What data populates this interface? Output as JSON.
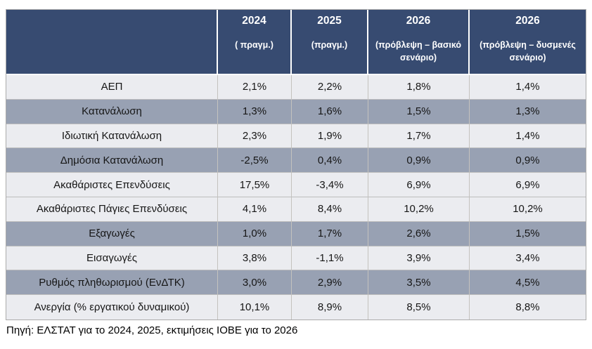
{
  "chart_data": {
    "type": "table",
    "title": "",
    "columns": [
      "",
      "2024 ( πραγμ.)",
      "2025 (πραγμ.)",
      "2026 (πρόβλεψη – βασικό σενάριο)",
      "2026 (πρόβλεψη – δυσμενές σενάριο)"
    ],
    "rows": [
      [
        "ΑΕΠ",
        "2,1%",
        "2,2%",
        "1,8%",
        "1,4%"
      ],
      [
        "Κατανάλωση",
        "1,3%",
        "1,6%",
        "1,5%",
        "1,3%"
      ],
      [
        "Ιδιωτική Κατανάλωση",
        "2,3%",
        "1,9%",
        "1,7%",
        "1,4%"
      ],
      [
        "Δημόσια Κατανάλωση",
        "-2,5%",
        "0,4%",
        "0,9%",
        "0,9%"
      ],
      [
        "Ακαθάριστες Επενδύσεις",
        "17,5%",
        "-3,4%",
        "6,9%",
        "6,9%"
      ],
      [
        "Ακαθάριστες Πάγιες Επενδύσεις",
        "4,1%",
        "8,4%",
        "10,2%",
        "10,2%"
      ],
      [
        "Εξαγωγές",
        "1,0%",
        "1,7%",
        "2,6%",
        "1,5%"
      ],
      [
        "Εισαγωγές",
        "3,8%",
        "-1,1%",
        "3,9%",
        "3,4%"
      ],
      [
        "Ρυθμός πληθωρισμού (ΕνΔΤΚ)",
        "3,0%",
        "2,9%",
        "3,5%",
        "4,5%"
      ],
      [
        "Ανεργία (% εργατικού δυναμικού)",
        "10,1%",
        "8,9%",
        "8,5%",
        "8,8%"
      ]
    ],
    "source": "Πηγή: ΕΛΣΤΑΤ για το 2024, 2025, εκτιμήσεις ΙΟΒΕ για το 2026"
  },
  "table": {
    "header": {
      "cols": [
        {
          "year": "2024",
          "note": "( πραγμ.)"
        },
        {
          "year": "2025",
          "note": "(πραγμ.)"
        },
        {
          "year": "2026",
          "note": "(πρόβλεψη – βασικό σενάριο)"
        },
        {
          "year": "2026",
          "note": "(πρόβλεψη – δυσμενές σενάριο)"
        }
      ]
    }
  },
  "footer": {
    "source": "Πηγή: ΕΛΣΤΑΤ για το 2024, 2025, εκτιμήσεις ΙΟΒΕ για το 2026"
  },
  "colors": {
    "header_bg": "#374B71",
    "shaded_row_bg": "#98A1B3",
    "light_row_bg": "#EBECF0",
    "header_text": "#FFFFFF",
    "body_text": "#161616"
  }
}
